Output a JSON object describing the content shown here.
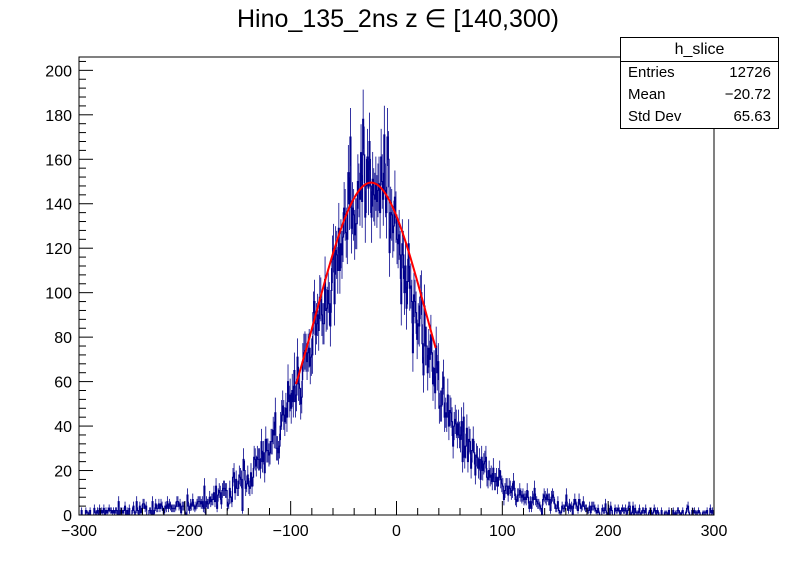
{
  "chart_data": {
    "type": "histogram",
    "title": "Hino_135_2ns z  ∈ [140,300)",
    "xlabel": "",
    "ylabel": "",
    "xlim": [
      -300,
      300
    ],
    "ylim": [
      0,
      206
    ],
    "x_ticks": [
      "−300",
      "−200",
      "−100",
      "0",
      "100",
      "200",
      "300"
    ],
    "y_ticks": [
      "0",
      "20",
      "40",
      "60",
      "80",
      "100",
      "120",
      "140",
      "160",
      "180",
      "200"
    ],
    "bin_width": 1,
    "grid": false,
    "series": [
      {
        "kind": "histogram",
        "color": "#00008b",
        "envelope": {
          "x": [
            -300,
            -250,
            -200,
            -180,
            -160,
            -140,
            -120,
            -100,
            -80,
            -60,
            -50,
            -40,
            -30,
            -20,
            -10,
            0,
            10,
            20,
            30,
            40,
            50,
            60,
            80,
            100,
            120,
            140,
            160,
            200,
            250,
            300
          ],
          "count": [
            1,
            2,
            4,
            6,
            10,
            18,
            30,
            52,
            76,
            112,
            130,
            142,
            150,
            150,
            143,
            128,
            110,
            92,
            74,
            57,
            44,
            34,
            22,
            13,
            8,
            6,
            4,
            2,
            1,
            1
          ]
        }
      },
      {
        "kind": "gaussian-fit",
        "color": "#ff0000",
        "x_range": [
          -95,
          37
        ],
        "constant": 149.5,
        "mean": -24,
        "sigma": 52
      }
    ],
    "stats": {
      "name": "h_slice",
      "rows": [
        {
          "label": "Entries",
          "value": "12726"
        },
        {
          "label": "Mean",
          "value": "−20.72"
        },
        {
          "label": "Std Dev",
          "value": "65.63"
        }
      ]
    }
  }
}
